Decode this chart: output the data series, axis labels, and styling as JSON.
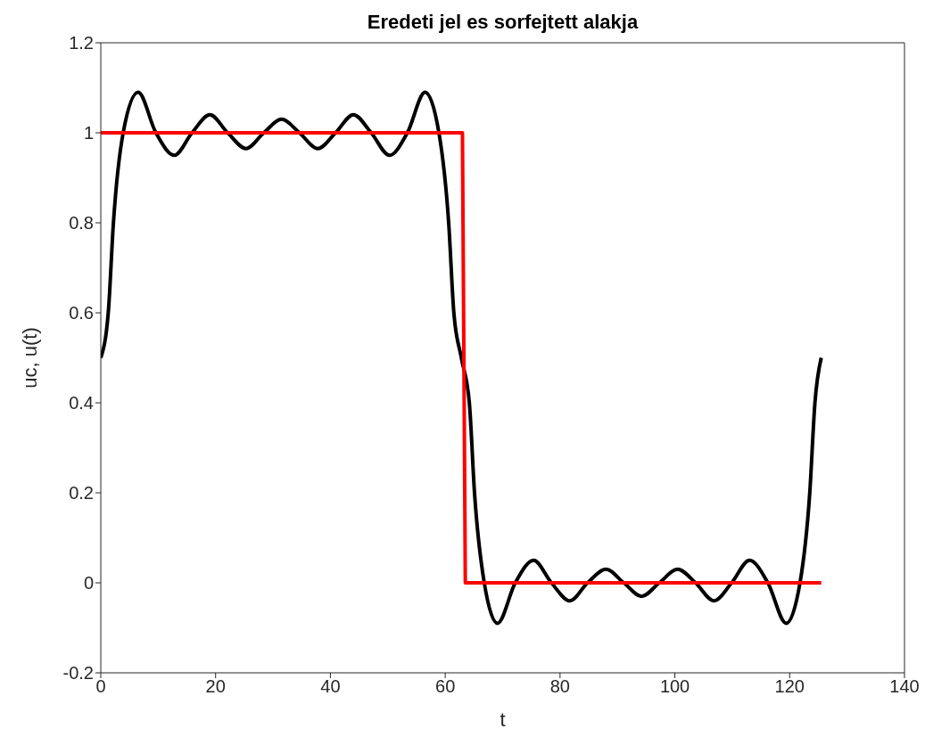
{
  "chart_data": {
    "type": "line",
    "title": "Eredeti jel es sorfejtett alakja",
    "xlabel": "t",
    "ylabel": "uc, u(t)",
    "xlim": [
      0,
      140
    ],
    "xticks": [
      0,
      20,
      40,
      60,
      80,
      100,
      120,
      140
    ],
    "ylim": [
      -0.2,
      1.2
    ],
    "yticks": [
      -0.2,
      0,
      0.2,
      0.4,
      0.6,
      0.8,
      1,
      1.2
    ],
    "series": [
      {
        "color": "#000000",
        "x": [
          0,
          1.3,
          2.2,
          3.9,
          6.5,
          9.6,
          12.8,
          15.9,
          19,
          22.1,
          25.3,
          28.4,
          31.5,
          34.6,
          37.8,
          40.9,
          44,
          47.1,
          50.3,
          53.4,
          56.5,
          58.9,
          60.6,
          61.5,
          62.8,
          64.2,
          65.1,
          66.8,
          69.1,
          72.2,
          75.4,
          78.5,
          81.7,
          84.8,
          88,
          91.1,
          94.2,
          97.3,
          100.5,
          103.6,
          106.8,
          109.9,
          113,
          116.2,
          119.4,
          121.8,
          123.5,
          124.4,
          125.5
        ],
        "values": [
          0.5,
          0.6,
          0.8,
          1,
          1.09,
          1,
          0.95,
          1,
          1.04,
          1,
          0.965,
          1,
          1.03,
          1,
          0.965,
          1,
          1.04,
          1,
          0.95,
          1,
          1.09,
          1,
          0.8,
          0.6,
          0.5,
          0.4,
          0.2,
          0,
          -0.09,
          0,
          0.05,
          0,
          -0.04,
          0,
          0.03,
          0,
          -0.03,
          0,
          0.03,
          0,
          -0.04,
          0,
          0.05,
          0,
          -0.09,
          0,
          0.2,
          0.4,
          0.5
        ]
      },
      {
        "color": "#ff0000",
        "x": [
          0,
          63,
          63.5,
          125.5
        ],
        "values": [
          1,
          1,
          0,
          0
        ]
      }
    ]
  }
}
